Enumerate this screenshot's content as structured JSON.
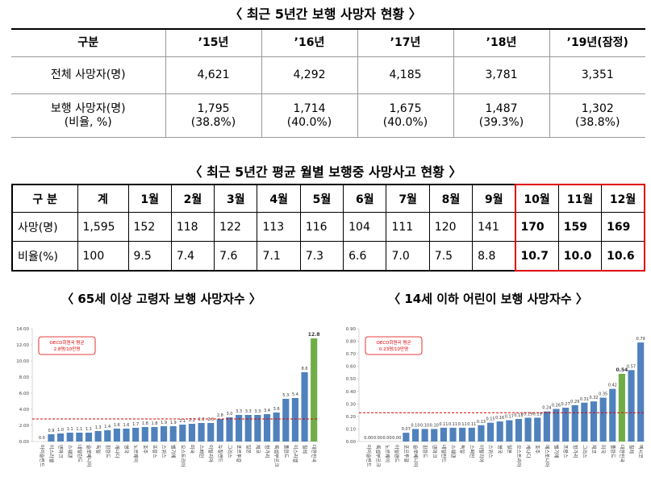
{
  "table1": {
    "title": "〈 최근 5년간 보행 사망자 현황 〉",
    "header": [
      "구분",
      "’15년",
      "’16년",
      "’17년",
      "’18년",
      "’19년(잠정)"
    ],
    "rows": [
      {
        "label": [
          "전체 사망자(명)"
        ],
        "cells": [
          [
            "4,621"
          ],
          [
            "4,292"
          ],
          [
            "4,185"
          ],
          [
            "3,781"
          ],
          [
            "3,351"
          ]
        ]
      },
      {
        "label": [
          "보행 사망자(명)",
          "(비율, %)"
        ],
        "cells": [
          [
            "1,795",
            "(38.8%)"
          ],
          [
            "1,714",
            "(40.0%)"
          ],
          [
            "1,675",
            "(40.0%)"
          ],
          [
            "1,487",
            "(39.3%)"
          ],
          [
            "1,302",
            "(38.8%)"
          ]
        ]
      }
    ]
  },
  "table2": {
    "title": "〈 최근 5년간 평균 월별 보행중 사망사고 현황 〉",
    "header": [
      "구 분",
      "계",
      "1월",
      "2월",
      "3월",
      "4월",
      "5월",
      "6월",
      "7월",
      "8월",
      "9월",
      "10월",
      "11월",
      "12월"
    ],
    "rows": [
      [
        "사망(명)",
        "1,595",
        "152",
        "118",
        "122",
        "113",
        "116",
        "104",
        "111",
        "120",
        "141",
        "170",
        "159",
        "169"
      ],
      [
        "비율(%)",
        "100",
        "9.5",
        "7.4",
        "7.6",
        "7.1",
        "7.3",
        "6.6",
        "7.0",
        "7.5",
        "8.8",
        "10.7",
        "10.0",
        "10.6"
      ]
    ]
  },
  "chart_data": [
    {
      "type": "bar",
      "title": "〈 65세 이상 고령자 보행 사망자수 〉",
      "legend_text": [
        "OECD회원국 평균",
        "2.8명/10만명"
      ],
      "reference_line": {
        "value": 2.8,
        "color": "#e00000"
      },
      "categories": [
        "아이슬란드",
        "이스라엘",
        "덴마크",
        "스웨덴",
        "네덜란드",
        "슬로베니아",
        "독일",
        "핀란드",
        "캐나다",
        "영국",
        "노르웨이",
        "호주",
        "프랑스",
        "스위스",
        "벨기에",
        "오스트리아",
        "미국",
        "스페인",
        "이탈리아",
        "뉴질랜드",
        "그리스",
        "포르투갈",
        "일본",
        "체코",
        "헝가리",
        "룩셈부르크",
        "폴란드",
        "이스라엘",
        "칠레",
        "대한민국"
      ],
      "values": [
        0.0,
        0.9,
        1.0,
        1.1,
        1.1,
        1.1,
        1.3,
        1.4,
        1.6,
        1.6,
        1.7,
        1.8,
        1.8,
        1.9,
        1.9,
        2.1,
        2.2,
        2.3,
        2.3,
        2.8,
        3.0,
        3.3,
        3.3,
        3.3,
        3.4,
        3.6,
        5.3,
        5.4,
        8.6,
        12.8
      ],
      "value_labels": [
        "0.0",
        "0.9",
        "1.0",
        "1.1",
        "1.1",
        "1.1",
        "1.3",
        "1.4",
        "1.6",
        "1.6",
        "1.7",
        "1.8",
        "1.8",
        "1.9",
        "1.9",
        "2.1",
        "2.2",
        "2.3",
        "2.3",
        "2.8",
        "3.0",
        "3.3",
        "3.3",
        "3.3",
        "3.4",
        "3.6",
        "5.3",
        "5.4",
        "8.6",
        "12.8"
      ],
      "colors": [
        "#4f81bd",
        "#4f81bd",
        "#4f81bd",
        "#4f81bd",
        "#4f81bd",
        "#4f81bd",
        "#4f81bd",
        "#4f81bd",
        "#4f81bd",
        "#4f81bd",
        "#4f81bd",
        "#4f81bd",
        "#4f81bd",
        "#4f81bd",
        "#4f81bd",
        "#4f81bd",
        "#4f81bd",
        "#4f81bd",
        "#4f81bd",
        "#4f81bd",
        "#4f81bd",
        "#4f81bd",
        "#4f81bd",
        "#4f81bd",
        "#4f81bd",
        "#4f81bd",
        "#4f81bd",
        "#4f81bd",
        "#4f81bd",
        "#70ad47"
      ],
      "ylim": [
        0,
        14
      ],
      "yticks": [
        {
          "value": 0,
          "label": "0.00"
        },
        {
          "value": 2,
          "label": "2.00"
        },
        {
          "value": 4,
          "label": "4.00"
        },
        {
          "value": 6,
          "label": "6.00"
        },
        {
          "value": 8,
          "label": "8.00"
        },
        {
          "value": 10,
          "label": "10.00"
        },
        {
          "value": 12,
          "label": "12.00"
        },
        {
          "value": 14,
          "label": "14.00"
        }
      ]
    },
    {
      "type": "bar",
      "title": "〈 14세 이하 어린이 보행 사망자수 〉",
      "legend_text": [
        "OECD회원국 평균",
        "0.23명/10만명"
      ],
      "reference_line": {
        "value": 0.23,
        "color": "#e00000"
      },
      "categories": [
        "아이슬란드",
        "룩셈부르크",
        "노르웨이",
        "아일랜드",
        "포르투갈",
        "슬로베니아",
        "핀란드",
        "덴마크",
        "네덜란드",
        "스웨덴",
        "독일",
        "스페인",
        "이탈리아",
        "스위스",
        "영국",
        "일본",
        "오스트리아",
        "캐나다",
        "호주",
        "에스토니아",
        "벨기에",
        "프랑스",
        "헝가리",
        "그리스",
        "체코",
        "미국",
        "폴란드",
        "대한민국",
        "칠레",
        "멕시코"
      ],
      "values": [
        0.0,
        0.0,
        0.0,
        0.0,
        0.07,
        0.1,
        0.1,
        0.1,
        0.11,
        0.11,
        0.11,
        0.11,
        0.13,
        0.15,
        0.16,
        0.17,
        0.18,
        0.19,
        0.19,
        0.24,
        0.26,
        0.27,
        0.29,
        0.31,
        0.32,
        0.35,
        0.42,
        0.54,
        0.57,
        0.79
      ],
      "value_labels": [
        "0.00",
        "0.00",
        "0.00",
        "0.00",
        "0.07",
        "0.10",
        "0.10",
        "0.10",
        "0.11",
        "0.11",
        "0.11",
        "0.11",
        "0.13",
        "0.15",
        "0.16",
        "0.17",
        "0.18",
        "0.19",
        "0.19",
        "0.24",
        "0.26",
        "0.27",
        "0.29",
        "0.31",
        "0.32",
        "0.35",
        "0.42",
        "0.54",
        "0.57",
        "0.79"
      ],
      "colors": [
        "#4f81bd",
        "#4f81bd",
        "#4f81bd",
        "#4f81bd",
        "#4f81bd",
        "#4f81bd",
        "#4f81bd",
        "#4f81bd",
        "#4f81bd",
        "#4f81bd",
        "#4f81bd",
        "#4f81bd",
        "#4f81bd",
        "#4f81bd",
        "#4f81bd",
        "#4f81bd",
        "#4f81bd",
        "#4f81bd",
        "#4f81bd",
        "#4f81bd",
        "#4f81bd",
        "#4f81bd",
        "#4f81bd",
        "#4f81bd",
        "#4f81bd",
        "#4f81bd",
        "#4f81bd",
        "#70ad47",
        "#4f81bd",
        "#4f81bd"
      ],
      "ylim": [
        0,
        0.9
      ],
      "yticks": [
        {
          "value": 0,
          "label": "0.00"
        },
        {
          "value": 0.1,
          "label": "0.10"
        },
        {
          "value": 0.2,
          "label": "0.20"
        },
        {
          "value": 0.3,
          "label": "0.30"
        },
        {
          "value": 0.4,
          "label": "0.40"
        },
        {
          "value": 0.5,
          "label": "0.50"
        },
        {
          "value": 0.6,
          "label": "0.60"
        },
        {
          "value": 0.7,
          "label": "0.70"
        },
        {
          "value": 0.8,
          "label": "0.80"
        },
        {
          "value": 0.9,
          "label": "0.90"
        }
      ]
    }
  ]
}
